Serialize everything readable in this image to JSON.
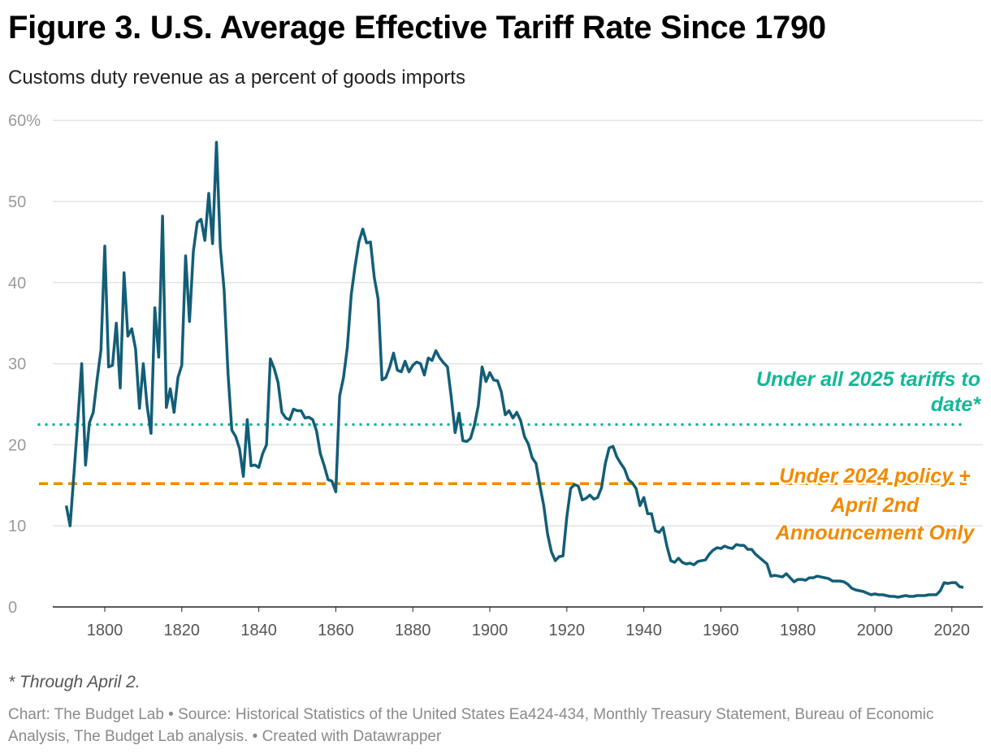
{
  "title": "Figure 3. U.S. Average Effective Tariff Rate Since 1790",
  "subtitle": "Customs duty revenue as a percent of goods imports",
  "footnote": "* Through April 2.",
  "source": "Chart: The Budget Lab • Source: Historical Statistics of the United States Ea424-434, Monthly Treasury Statement, Bureau of Economic Analysis, The Budget Lab analysis. • Created with Datawrapper",
  "colors": {
    "line": "#135e77",
    "teal": "#12b896",
    "orange": "#f28a00",
    "grid": "#e3e3e3"
  },
  "chart_data": {
    "type": "line",
    "title": "Figure 3. U.S. Average Effective Tariff Rate Since 1790",
    "subtitle": "Customs duty revenue as a percent of goods imports",
    "xlim": [
      1790,
      2024
    ],
    "ylim": [
      0,
      60
    ],
    "y_ticks": [
      "60%",
      "50",
      "40",
      "30",
      "20",
      "10",
      "0"
    ],
    "y_tick_values": [
      60,
      50,
      40,
      30,
      20,
      10,
      0
    ],
    "x_ticks": [
      "1800",
      "1820",
      "1840",
      "1860",
      "1880",
      "1900",
      "1920",
      "1940",
      "1960",
      "1980",
      "2000",
      "2020"
    ],
    "x_tick_values": [
      1800,
      1820,
      1840,
      1860,
      1880,
      1900,
      1920,
      1940,
      1960,
      1980,
      2000,
      2020
    ],
    "grid": "horizontal",
    "start_year": 1790,
    "values": [
      12.5,
      10,
      16.5,
      23,
      30,
      17.5,
      22.7,
      24,
      28,
      31.7,
      44.5,
      29.6,
      29.8,
      35,
      27,
      41.2,
      33.4,
      34.3,
      31.8,
      24.5,
      30,
      24.8,
      21.4,
      36.9,
      30.8,
      48.2,
      24.6,
      26.9,
      24,
      28.3,
      29.8,
      43.3,
      35.2,
      43.8,
      47.4,
      47.8,
      45.2,
      51,
      44.8,
      57.3,
      44.4,
      39.1,
      28.8,
      21.8,
      21,
      19.5,
      16.1,
      23.1,
      17.4,
      17.5,
      17.2,
      18.9,
      20,
      30.6,
      29.4,
      27.7,
      24,
      23.3,
      23.1,
      24.4,
      24.2,
      24.2,
      23.3,
      23.4,
      23.1,
      21.7,
      18.9,
      17.4,
      15.7,
      15.5,
      14.2,
      26,
      28.3,
      32,
      38.5,
      42,
      45,
      46.6,
      44.9,
      45,
      40.6,
      38,
      28,
      28.3,
      29.6,
      31.3,
      29.2,
      29,
      30.3,
      29,
      29.8,
      30.2,
      30,
      28.6,
      30.7,
      30.4,
      31.6,
      30.7,
      30.1,
      29.6,
      25.8,
      21.5,
      23.9,
      20.5,
      20.4,
      20.8,
      22.4,
      24.8,
      29.6,
      27.8,
      28.9,
      28,
      27.9,
      26.5,
      23.7,
      24.2,
      23.3,
      24,
      23,
      21,
      20.1,
      18.4,
      17.7,
      15,
      12.5,
      9,
      6.8,
      5.7,
      6.2,
      6.3,
      11.1,
      14.6,
      15.1,
      14.9,
      13.2,
      13.4,
      13.8,
      13.3,
      13.5,
      14.7,
      17.7,
      19.6,
      19.8,
      18.5,
      17.7,
      17,
      15.7,
      15.3,
      14.6,
      12.5,
      13.5,
      11.5,
      11.5,
      9.4,
      9.2,
      9.8,
      7.5,
      5.7,
      5.5,
      6,
      5.5,
      5.3,
      5.4,
      5.2,
      5.6,
      5.7,
      5.8,
      6.5,
      7,
      7.3,
      7.2,
      7.5,
      7.3,
      7.2,
      7.7,
      7.6,
      7.6,
      7.1,
      7.1,
      6.5,
      6.1,
      5.7,
      5.3,
      3.8,
      3.9,
      3.8,
      3.7,
      4.1,
      3.6,
      3.1,
      3.4,
      3.4,
      3.3,
      3.6,
      3.6,
      3.8,
      3.7,
      3.6,
      3.5,
      3.2,
      3.2,
      3.2,
      3.1,
      2.8,
      2.3,
      2.1,
      2,
      1.9,
      1.7,
      1.5,
      1.6,
      1.5,
      1.5,
      1.4,
      1.3,
      1.3,
      1.2,
      1.3,
      1.4,
      1.3,
      1.3,
      1.4,
      1.4,
      1.4,
      1.5,
      1.5,
      1.5,
      2,
      3,
      2.9,
      3,
      3,
      2.5,
      2.4
    ],
    "reference_lines": [
      {
        "label": "Under all 2025 tariffs to date*",
        "label_lines": [
          "Under all 2025 tariffs to",
          "date*"
        ],
        "value": 22.5,
        "style": "dotted",
        "color": "#12b896"
      },
      {
        "label": "Under 2024 policy + April 2nd Announcement Only",
        "label_lines": [
          "Under 2024 policy +",
          "April 2nd",
          "Announcement Only"
        ],
        "value": 15.2,
        "style": "dashed",
        "color": "#f28a00"
      }
    ]
  }
}
